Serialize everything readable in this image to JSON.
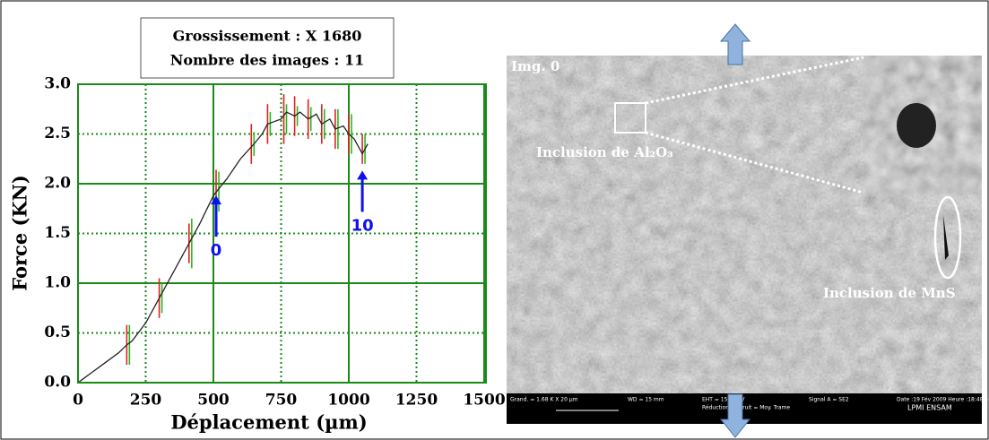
{
  "chart_data": {
    "type": "line",
    "title_lines": [
      "Grossissement : X 1680",
      "Nombre des images : 11"
    ],
    "xlabel": "Déplacement (µm)",
    "ylabel": "Force (KN)",
    "x": [
      0,
      25,
      50,
      100,
      150,
      180,
      200,
      250,
      300,
      350,
      400,
      450,
      500,
      520,
      550,
      600,
      650,
      680,
      700,
      720,
      750,
      770,
      800,
      820,
      850,
      880,
      900,
      930,
      950,
      980,
      1000,
      1020,
      1050,
      1070
    ],
    "values": [
      0.0,
      0.05,
      0.1,
      0.2,
      0.3,
      0.38,
      0.42,
      0.6,
      0.85,
      1.1,
      1.35,
      1.6,
      1.88,
      1.95,
      2.05,
      2.25,
      2.4,
      2.5,
      2.6,
      2.62,
      2.65,
      2.72,
      2.68,
      2.72,
      2.65,
      2.7,
      2.6,
      2.65,
      2.55,
      2.58,
      2.5,
      2.45,
      2.3,
      2.4
    ],
    "color": "#222222",
    "error_bars": {
      "x": [
        180,
        300,
        410,
        510,
        640,
        700,
        760,
        800,
        850,
        900,
        950,
        1000,
        1050
      ],
      "values": [
        0.38,
        0.85,
        1.4,
        1.92,
        2.4,
        2.6,
        2.65,
        2.68,
        2.65,
        2.6,
        2.55,
        2.5,
        2.35
      ],
      "red_errors": [
        0.2,
        0.2,
        0.2,
        0.22,
        0.2,
        0.2,
        0.25,
        0.2,
        0.2,
        0.2,
        0.2,
        0.2,
        0.15
      ],
      "green_errors": [
        0.2,
        0.15,
        0.25,
        0.2,
        0.12,
        0.12,
        0.15,
        0.1,
        0.12,
        0.15,
        0.2,
        0.2,
        0.15
      ],
      "red_color": "#e02020",
      "green_color": "#22bb22"
    },
    "annotations": [
      {
        "text": "0",
        "x": 510,
        "y": 1.9
      },
      {
        "text": "10",
        "x": 1050,
        "y": 2.15
      }
    ],
    "annotation_color": "#1010ee",
    "xlim": [
      0,
      1500
    ],
    "xticks": [
      0,
      250,
      500,
      750,
      1000,
      1250,
      1500
    ],
    "ylim": [
      0,
      3
    ],
    "yticks": [
      {
        "value": 0,
        "label": "0.0"
      },
      0.5,
      {
        "value": 1,
        "label": "1.0"
      },
      1.5,
      {
        "value": 2,
        "label": "2.0"
      },
      2.5,
      {
        "value": 3,
        "label": "3.0"
      }
    ],
    "grid": true,
    "grid_color": "#1a8a1a"
  },
  "image": {
    "label": "Img. 0",
    "inclusion_al": "Inclusion de Al₂O₃",
    "inclusion_mns": "Inclusion de MnS",
    "footer": [
      "Grand. =   1.68 K X  20 µm",
      "WD =   15 mm",
      "EHT = 15.00 kV",
      "Signal A = SE2",
      "Date :19 Fév 2009  Heure :18:48:5",
      "Réduction de bruit = Moy. Trame",
      "LPMI ENSAM"
    ]
  }
}
